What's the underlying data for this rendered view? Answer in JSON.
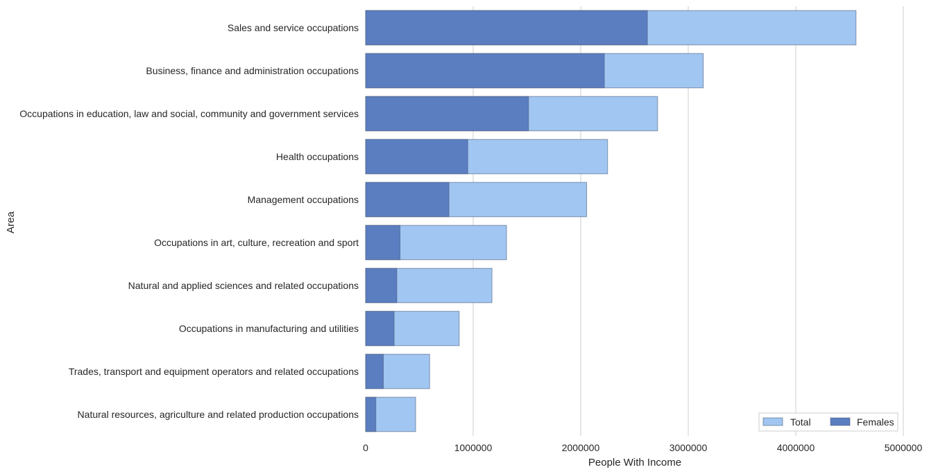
{
  "chart_data": {
    "type": "bar",
    "orientation": "horizontal",
    "title": "",
    "xlabel": "People With Income",
    "ylabel": "Area",
    "xlim": [
      0,
      5000000
    ],
    "x_ticks": [
      0,
      1000000,
      2000000,
      3000000,
      4000000,
      5000000
    ],
    "x_tick_labels": [
      "0",
      "1000000",
      "2000000",
      "3000000",
      "4000000",
      "5000000"
    ],
    "grid": "vertical",
    "legend_position": "lower-right",
    "categories": [
      "Sales and service occupations",
      "Business, finance and administration occupations",
      "Occupations in education, law and social, community and government services",
      "Health occupations",
      "Management occupations",
      "Occupations in art, culture, recreation and sport",
      "Natural and applied sciences and related occupations",
      "Occupations in manufacturing and utilities",
      "Trades, transport and equipment operators and related occupations",
      "Natural resources, agriculture and related production occupations"
    ],
    "series": [
      {
        "name": "Total",
        "color": "#a1c6f2",
        "values": [
          4560000,
          3140000,
          2715000,
          2250000,
          2055000,
          1310000,
          1175000,
          870000,
          595000,
          465000
        ]
      },
      {
        "name": "Females",
        "color": "#5b7ec1",
        "values": [
          2620000,
          2220000,
          1515000,
          950000,
          775000,
          320000,
          290000,
          265000,
          165000,
          95000
        ]
      }
    ]
  }
}
